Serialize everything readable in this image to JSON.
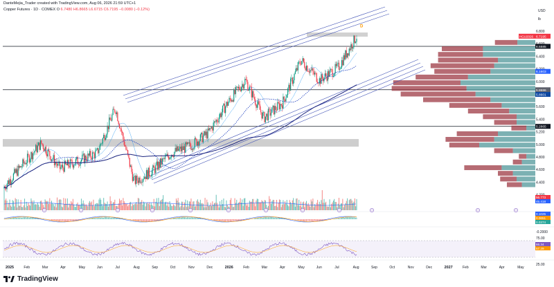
{
  "header": {
    "line1": "DanteMejia_Trader created with TradingView.com, Aug 06, 2026 21:59 UTC+1",
    "line2_prefix": "Copper Futures · 1D · COMEX  O",
    "line2_values": "6.7480  H6.8665  L6.6715  C6.7195  −0.0080 (−0.12%)"
  },
  "axis": {
    "currency": "USD",
    "unit": "lb",
    "price_ticks": [
      "6.800",
      "6.600",
      "6.400",
      "6.200",
      "6.000",
      "5.800",
      "5.600",
      "5.400",
      "5.200",
      "5.000",
      "4.800",
      "4.600",
      "4.400",
      "4.200"
    ],
    "time_labels": [
      "2025",
      "Feb",
      "Mar",
      "Apr",
      "May",
      "Jun",
      "Jul",
      "Aug",
      "Sep",
      "Oct",
      "Nov",
      "Dec",
      "2026",
      "Feb",
      "Mar",
      "Apr",
      "May",
      "Jun",
      "Jul",
      "Aug",
      "Sep",
      "Oct",
      "Nov",
      "Dec",
      "2027",
      "Feb",
      "Mar",
      "Apr",
      "May"
    ],
    "macd_ticks": [
      "-0.2000"
    ],
    "rsi_ticks": [
      "75.00",
      "25.00"
    ]
  },
  "price_tags": [
    {
      "label": "HGU2026",
      "value": "6.7195",
      "color": "#f23645"
    },
    {
      "value": "6.5585",
      "color": "#131722"
    },
    {
      "value": "6.1603",
      "color": "#2962ff"
    },
    {
      "value": "5.8686",
      "color": "#5d606b"
    },
    {
      "value": "5.8601",
      "color": "#0d47a1"
    },
    {
      "value": "5.2865",
      "color": "#131722"
    }
  ],
  "indicator_tags": [
    {
      "value": "56.773",
      "color": "#f23645"
    },
    {
      "value": "45.418",
      "color": "#2962ff"
    },
    {
      "value": "0.1025",
      "color": "#2962ff"
    },
    {
      "value": "0.0651",
      "color": "#ff9800"
    },
    {
      "value": "0.0374",
      "color": "#26a69a"
    },
    {
      "value": "66.34",
      "color": "#7e57c2"
    },
    {
      "value": "57.29",
      "color": "#ff9800"
    }
  ],
  "annotation": "D",
  "brand": "TradingView",
  "chart_data": {
    "type": "candlestick",
    "title": "Copper Futures · 1D · COMEX",
    "ylabel": "USD/lb",
    "ylim": [
      4.1,
      6.95
    ],
    "x": [
      "2025-01",
      "2025-02",
      "2025-03",
      "2025-04",
      "2025-05",
      "2025-06",
      "2025-07",
      "2025-08",
      "2025-09",
      "2025-10",
      "2025-11",
      "2025-12",
      "2026-01",
      "2026-02",
      "2026-03",
      "2026-04",
      "2026-05",
      "2026-06",
      "2026-07",
      "2026-08"
    ],
    "close": [
      4.33,
      4.68,
      5.02,
      4.62,
      4.74,
      4.86,
      5.58,
      4.41,
      4.58,
      4.86,
      4.97,
      5.18,
      5.64,
      6.02,
      5.42,
      5.66,
      6.34,
      6.02,
      6.22,
      6.7195
    ],
    "horizontal_levels": [
      6.5585,
      5.8686,
      5.2865
    ],
    "last_close": 6.7195,
    "volume_profile": [
      {
        "price": 6.62,
        "up": 0.24,
        "down": 0.3
      },
      {
        "price": 6.52,
        "up": 0.7,
        "down": 0.55
      },
      {
        "price": 6.43,
        "up": 0.7,
        "down": 0.6
      },
      {
        "price": 6.34,
        "up": 0.5,
        "down": 0.8
      },
      {
        "price": 6.25,
        "up": 0.55,
        "down": 0.85
      },
      {
        "price": 6.16,
        "up": 0.6,
        "down": 0.75
      },
      {
        "price": 6.07,
        "up": 0.9,
        "down": 0.7
      },
      {
        "price": 5.98,
        "up": 1.0,
        "down": 0.9
      },
      {
        "price": 5.89,
        "up": 0.92,
        "down": 1.0
      },
      {
        "price": 5.8,
        "up": 0.8,
        "down": 1.0
      },
      {
        "price": 5.71,
        "up": 0.6,
        "down": 0.9
      },
      {
        "price": 5.62,
        "up": 0.45,
        "down": 0.7
      },
      {
        "price": 5.53,
        "up": 0.35,
        "down": 0.55
      },
      {
        "price": 5.44,
        "up": 0.25,
        "down": 0.45
      },
      {
        "price": 5.35,
        "up": 0.25,
        "down": 0.3
      },
      {
        "price": 5.26,
        "up": 0.12,
        "down": 0.2
      },
      {
        "price": 5.17,
        "up": 0.5,
        "down": 0.55
      },
      {
        "price": 5.08,
        "up": 0.55,
        "down": 0.65
      },
      {
        "price": 4.99,
        "up": 0.75,
        "down": 0.4
      },
      {
        "price": 4.9,
        "up": 0.3,
        "down": 0.25
      },
      {
        "price": 4.81,
        "up": 0.12,
        "down": 0.1
      },
      {
        "price": 4.72,
        "up": 0.18,
        "down": 0.12
      },
      {
        "price": 4.63,
        "up": 0.45,
        "down": 0.5
      },
      {
        "price": 4.54,
        "up": 0.3,
        "down": 0.2
      },
      {
        "price": 4.45,
        "up": 0.25,
        "down": 0.22
      },
      {
        "price": 4.36,
        "up": 0.18,
        "down": 0.2
      }
    ]
  }
}
